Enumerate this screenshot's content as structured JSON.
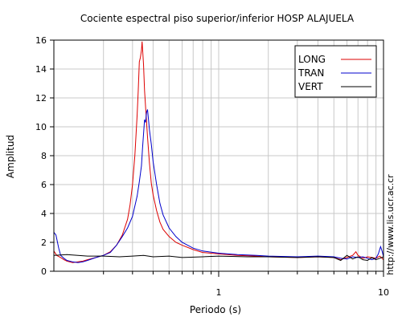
{
  "chart_data": {
    "type": "line",
    "title": "Cociente espectral piso superior/inferior  HOSP ALAJUELA",
    "xlabel": "Periodo (s)",
    "ylabel": "Amplitud",
    "x_scale": "log",
    "xlim": [
      0.1,
      10
    ],
    "ylim": [
      0,
      16
    ],
    "grid": true,
    "legend_position": "top-right",
    "x_ticks": [
      {
        "value": 1,
        "label": "1"
      },
      {
        "value": 10,
        "label": "10"
      }
    ],
    "y_ticks": [
      {
        "value": 0,
        "label": "0"
      },
      {
        "value": 2,
        "label": "2"
      },
      {
        "value": 4,
        "label": "4"
      },
      {
        "value": 6,
        "label": "6"
      },
      {
        "value": 8,
        "label": "8"
      },
      {
        "value": 10,
        "label": "10"
      },
      {
        "value": 12,
        "label": "12"
      },
      {
        "value": 14,
        "label": "14"
      },
      {
        "value": 16,
        "label": "16"
      }
    ],
    "annotation": "http://www.lis.ucr.ac.cr",
    "series": [
      {
        "name": "LONG",
        "color": "#dd0000",
        "points": [
          [
            0.1,
            1.4
          ],
          [
            0.104,
            1.1
          ],
          [
            0.11,
            0.95
          ],
          [
            0.115,
            0.8
          ],
          [
            0.12,
            0.7
          ],
          [
            0.13,
            0.6
          ],
          [
            0.14,
            0.65
          ],
          [
            0.15,
            0.7
          ],
          [
            0.16,
            0.8
          ],
          [
            0.18,
            0.95
          ],
          [
            0.2,
            1.1
          ],
          [
            0.22,
            1.35
          ],
          [
            0.24,
            1.8
          ],
          [
            0.26,
            2.5
          ],
          [
            0.28,
            3.6
          ],
          [
            0.29,
            4.6
          ],
          [
            0.3,
            6.0
          ],
          [
            0.31,
            8.0
          ],
          [
            0.32,
            10.8
          ],
          [
            0.325,
            12.5
          ],
          [
            0.33,
            14.5
          ],
          [
            0.335,
            14.8
          ],
          [
            0.34,
            15.3
          ],
          [
            0.343,
            15.9
          ],
          [
            0.347,
            15.0
          ],
          [
            0.35,
            14.3
          ],
          [
            0.355,
            12.5
          ],
          [
            0.36,
            11.4
          ],
          [
            0.37,
            9.3
          ],
          [
            0.38,
            7.5
          ],
          [
            0.39,
            6.1
          ],
          [
            0.4,
            5.3
          ],
          [
            0.42,
            4.2
          ],
          [
            0.44,
            3.4
          ],
          [
            0.46,
            2.9
          ],
          [
            0.5,
            2.4
          ],
          [
            0.55,
            2.0
          ],
          [
            0.6,
            1.8
          ],
          [
            0.7,
            1.5
          ],
          [
            0.8,
            1.3
          ],
          [
            1.0,
            1.2
          ],
          [
            1.3,
            1.1
          ],
          [
            1.7,
            1.05
          ],
          [
            2.0,
            1.0
          ],
          [
            3.0,
            0.95
          ],
          [
            4.0,
            1.0
          ],
          [
            5.0,
            0.95
          ],
          [
            5.5,
            0.8
          ],
          [
            6.0,
            0.95
          ],
          [
            6.5,
            1.1
          ],
          [
            6.8,
            1.35
          ],
          [
            7.0,
            1.1
          ],
          [
            7.5,
            0.9
          ],
          [
            8.0,
            1.0
          ],
          [
            9.0,
            0.9
          ],
          [
            9.5,
            1.05
          ],
          [
            10.0,
            0.8
          ]
        ]
      },
      {
        "name": "TRAN",
        "color": "#0000cc",
        "points": [
          [
            0.1,
            2.7
          ],
          [
            0.103,
            2.5
          ],
          [
            0.107,
            1.6
          ],
          [
            0.11,
            1.1
          ],
          [
            0.115,
            0.9
          ],
          [
            0.12,
            0.75
          ],
          [
            0.13,
            0.65
          ],
          [
            0.14,
            0.6
          ],
          [
            0.15,
            0.65
          ],
          [
            0.16,
            0.75
          ],
          [
            0.18,
            0.95
          ],
          [
            0.2,
            1.1
          ],
          [
            0.22,
            1.3
          ],
          [
            0.24,
            1.8
          ],
          [
            0.26,
            2.4
          ],
          [
            0.28,
            3.0
          ],
          [
            0.3,
            3.8
          ],
          [
            0.32,
            5.2
          ],
          [
            0.33,
            6.2
          ],
          [
            0.34,
            7.3
          ],
          [
            0.345,
            8.5
          ],
          [
            0.35,
            9.5
          ],
          [
            0.355,
            10.5
          ],
          [
            0.36,
            10.3
          ],
          [
            0.365,
            11.0
          ],
          [
            0.37,
            11.2
          ],
          [
            0.375,
            10.5
          ],
          [
            0.38,
            9.8
          ],
          [
            0.39,
            8.8
          ],
          [
            0.4,
            7.6
          ],
          [
            0.42,
            6.0
          ],
          [
            0.44,
            4.7
          ],
          [
            0.46,
            3.9
          ],
          [
            0.5,
            3.0
          ],
          [
            0.55,
            2.4
          ],
          [
            0.6,
            2.0
          ],
          [
            0.7,
            1.6
          ],
          [
            0.8,
            1.4
          ],
          [
            1.0,
            1.25
          ],
          [
            1.3,
            1.15
          ],
          [
            1.7,
            1.1
          ],
          [
            2.0,
            1.05
          ],
          [
            3.0,
            1.0
          ],
          [
            4.0,
            1.05
          ],
          [
            5.0,
            1.0
          ],
          [
            5.5,
            0.9
          ],
          [
            6.0,
            0.85
          ],
          [
            6.5,
            1.0
          ],
          [
            7.0,
            0.95
          ],
          [
            7.5,
            1.0
          ],
          [
            8.0,
            0.9
          ],
          [
            8.5,
            0.8
          ],
          [
            9.0,
            0.9
          ],
          [
            9.3,
            1.2
          ],
          [
            9.6,
            1.7
          ],
          [
            9.8,
            1.4
          ],
          [
            10.0,
            1.0
          ]
        ]
      },
      {
        "name": "VERT",
        "color": "#000000",
        "points": [
          [
            0.1,
            1.1
          ],
          [
            0.12,
            1.15
          ],
          [
            0.14,
            1.1
          ],
          [
            0.16,
            1.05
          ],
          [
            0.2,
            1.05
          ],
          [
            0.25,
            1.0
          ],
          [
            0.3,
            1.05
          ],
          [
            0.35,
            1.1
          ],
          [
            0.4,
            1.0
          ],
          [
            0.5,
            1.05
          ],
          [
            0.6,
            0.95
          ],
          [
            0.8,
            1.0
          ],
          [
            1.0,
            1.05
          ],
          [
            1.5,
            1.0
          ],
          [
            2.0,
            1.0
          ],
          [
            3.0,
            0.95
          ],
          [
            4.0,
            1.0
          ],
          [
            5.0,
            0.95
          ],
          [
            5.5,
            0.75
          ],
          [
            6.0,
            1.1
          ],
          [
            6.5,
            0.85
          ],
          [
            7.0,
            1.0
          ],
          [
            7.5,
            0.8
          ],
          [
            8.0,
            0.75
          ],
          [
            8.5,
            0.95
          ],
          [
            9.0,
            0.8
          ],
          [
            9.5,
            0.9
          ],
          [
            10.0,
            1.0
          ]
        ]
      }
    ]
  }
}
